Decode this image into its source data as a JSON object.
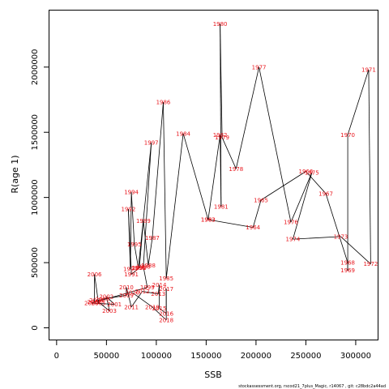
{
  "chart_data": {
    "type": "line",
    "xlabel": "SSB",
    "ylabel": "R(age 1)",
    "xlim": [
      -8000,
      322000
    ],
    "ylim": [
      -90000,
      2440000
    ],
    "x_ticks": [
      0,
      50000,
      100000,
      150000,
      200000,
      250000,
      300000
    ],
    "y_ticks": [
      0,
      500000,
      1000000,
      1500000,
      2000000
    ],
    "grid": false,
    "legend": "none",
    "line_color": "#000000",
    "label_color": "#e8141b",
    "points": [
      {
        "year": "1963",
        "x": 152000,
        "y": 830000
      },
      {
        "year": "1964",
        "x": 197000,
        "y": 770000
      },
      {
        "year": "1965",
        "x": 205000,
        "y": 980000
      },
      {
        "year": "1966",
        "x": 250000,
        "y": 1200000
      },
      {
        "year": "1967",
        "x": 270000,
        "y": 1030000
      },
      {
        "year": "1968",
        "x": 292000,
        "y": 500000
      },
      {
        "year": "1969",
        "x": 292000,
        "y": 440000
      },
      {
        "year": "1970",
        "x": 292000,
        "y": 1480000
      },
      {
        "year": "1971",
        "x": 313000,
        "y": 1980000
      },
      {
        "year": "1972",
        "x": 315000,
        "y": 490000
      },
      {
        "year": "1973",
        "x": 285000,
        "y": 700000
      },
      {
        "year": "1974",
        "x": 237000,
        "y": 680000
      },
      {
        "year": "1975",
        "x": 256000,
        "y": 1190000
      },
      {
        "year": "1976",
        "x": 235000,
        "y": 810000
      },
      {
        "year": "1977",
        "x": 203000,
        "y": 2000000
      },
      {
        "year": "1978",
        "x": 180000,
        "y": 1220000
      },
      {
        "year": "1979",
        "x": 166000,
        "y": 1460000
      },
      {
        "year": "1980",
        "x": 164000,
        "y": 2330000
      },
      {
        "year": "1981",
        "x": 165000,
        "y": 930000
      },
      {
        "year": "1982",
        "x": 164000,
        "y": 1480000
      },
      {
        "year": "1983",
        "x": 152000,
        "y": 830000
      },
      {
        "year": "1984",
        "x": 127000,
        "y": 1490000
      },
      {
        "year": "1985",
        "x": 110000,
        "y": 380000
      },
      {
        "year": "1986",
        "x": 107000,
        "y": 1730000
      },
      {
        "year": "1987",
        "x": 96000,
        "y": 690000
      },
      {
        "year": "1988",
        "x": 92000,
        "y": 480000
      },
      {
        "year": "1989",
        "x": 87000,
        "y": 820000
      },
      {
        "year": "1990",
        "x": 83000,
        "y": 460000
      },
      {
        "year": "1991",
        "x": 75000,
        "y": 410000
      },
      {
        "year": "1992",
        "x": 72000,
        "y": 910000
      },
      {
        "year": "1993",
        "x": 74000,
        "y": 450000
      },
      {
        "year": "1994",
        "x": 75000,
        "y": 1040000
      },
      {
        "year": "1995",
        "x": 78000,
        "y": 640000
      },
      {
        "year": "1996",
        "x": 82000,
        "y": 460000
      },
      {
        "year": "1997",
        "x": 95000,
        "y": 1420000
      },
      {
        "year": "1998",
        "x": 87000,
        "y": 470000
      },
      {
        "year": "1999",
        "x": 91000,
        "y": 310000
      },
      {
        "year": "2000",
        "x": 35000,
        "y": 190000
      },
      {
        "year": "2001",
        "x": 58000,
        "y": 180000
      },
      {
        "year": "2002",
        "x": 50000,
        "y": 240000
      },
      {
        "year": "2003",
        "x": 53000,
        "y": 130000
      },
      {
        "year": "2004",
        "x": 40000,
        "y": 210000
      },
      {
        "year": "2005",
        "x": 42000,
        "y": 190000
      },
      {
        "year": "2006",
        "x": 38000,
        "y": 410000
      },
      {
        "year": "2007",
        "x": 38000,
        "y": 200000
      },
      {
        "year": "2008",
        "x": 46000,
        "y": 220000
      },
      {
        "year": "2009",
        "x": 70000,
        "y": 250000
      },
      {
        "year": "2010",
        "x": 70000,
        "y": 310000
      },
      {
        "year": "2011",
        "x": 75000,
        "y": 160000
      },
      {
        "year": "2012",
        "x": 86000,
        "y": 280000
      },
      {
        "year": "2013",
        "x": 102000,
        "y": 260000
      },
      {
        "year": "2014",
        "x": 103000,
        "y": 330000
      },
      {
        "year": "2015",
        "x": 103000,
        "y": 150000
      },
      {
        "year": "2016",
        "x": 110000,
        "y": 110000
      },
      {
        "year": "2017",
        "x": 110000,
        "y": 300000
      },
      {
        "year": "2018",
        "x": 110000,
        "y": 60000
      },
      {
        "year": "2019",
        "x": 96000,
        "y": 160000
      },
      {
        "year": "2020",
        "x": 76000,
        "y": 270000
      }
    ]
  },
  "caption": "stockassessment.org,  rscod21_7plus_Magic,  r14067 ,  git: c28bdc2a44ad"
}
